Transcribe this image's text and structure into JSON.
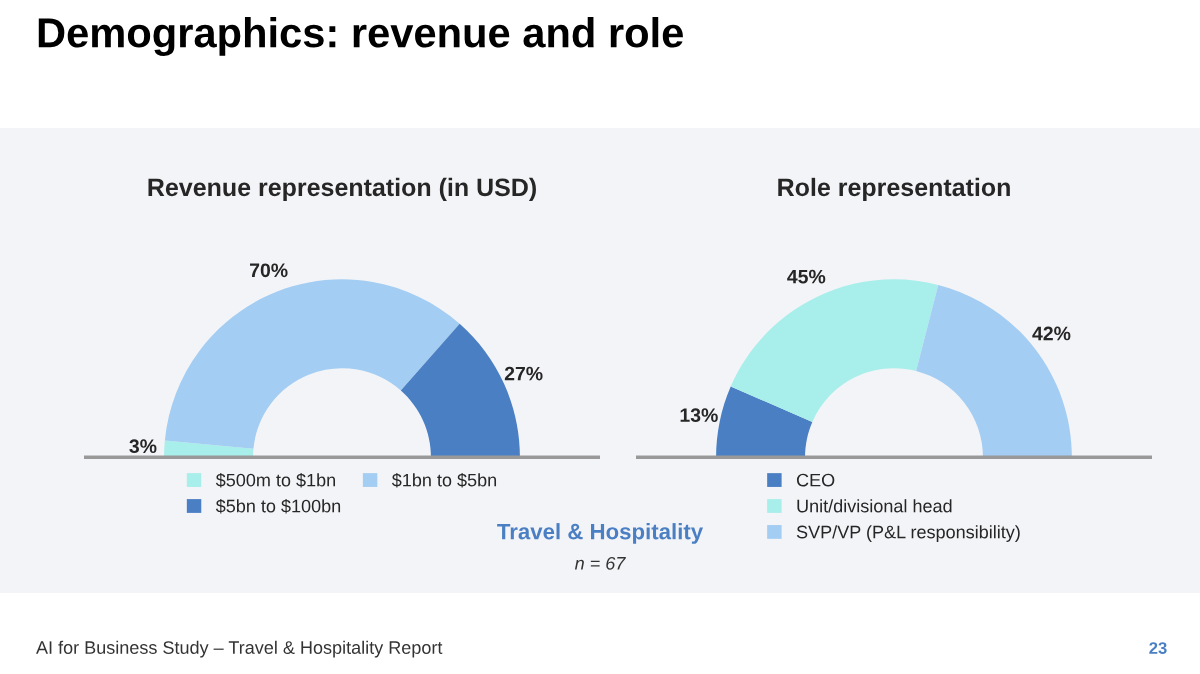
{
  "chart_data": [
    {
      "type": "donut",
      "title": "Revenue representation (in USD)",
      "categories": [
        "$500m to $1bn",
        "$1bn to $5bn",
        "$5bn to $100bn"
      ],
      "values": [
        3,
        70,
        27
      ],
      "value_labels": [
        "3%",
        "70%",
        "27%"
      ],
      "colors": [
        "#a8eeea",
        "#a3cdf2",
        "#4a7fc4"
      ],
      "legend": "bottom",
      "annotations": [
        "Demographics: revenue and role",
        "Travel & Hospitality",
        "n = 67",
        "AI for Business Study – Travel & Hospitality Report",
        "23"
      ]
    },
    {
      "type": "donut",
      "title": "Role representation",
      "categories": [
        "CEO",
        "Unit/divisional head",
        "SVP/VP (P&L responsibility)"
      ],
      "values": [
        13,
        45,
        42
      ],
      "value_labels": [
        "13%",
        "45%",
        "42%"
      ],
      "colors": [
        "#4a7fc4",
        "#a8eeea",
        "#a3cdf2"
      ],
      "legend": "bottom"
    }
  ]
}
